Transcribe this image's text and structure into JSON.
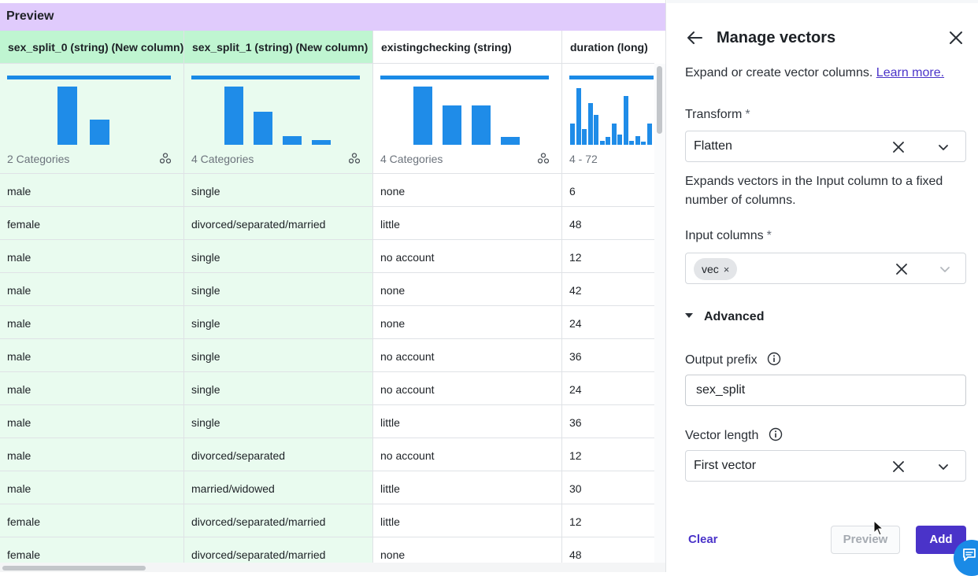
{
  "preview": {
    "title": "Preview",
    "columns": [
      {
        "header": "sex_split_0 (string) (New column)",
        "summary": "2 Categories",
        "bars": [
          0.92,
          0.4
        ]
      },
      {
        "header": "sex_split_1 (string) (New column)",
        "summary": "4 Categories",
        "bars": [
          0.92,
          0.52,
          0.14,
          0.07
        ]
      },
      {
        "header": "existingchecking (string)",
        "summary": "4 Categories",
        "bars": [
          0.92,
          0.62,
          0.62,
          0.13
        ]
      },
      {
        "header": "duration (long)",
        "summary": "4 - 72",
        "bars": [
          0.34,
          0.9,
          0.25,
          0.66,
          0.48,
          0.06,
          0.12,
          0.34,
          0.16,
          0.78,
          0.06,
          0.14,
          0.05,
          0.34
        ]
      }
    ],
    "rows": [
      [
        "male",
        "single",
        "none",
        "6"
      ],
      [
        "female",
        "divorced/separated/married",
        "little",
        "48"
      ],
      [
        "male",
        "single",
        "no account",
        "12"
      ],
      [
        "male",
        "single",
        "none",
        "42"
      ],
      [
        "male",
        "single",
        "none",
        "24"
      ],
      [
        "male",
        "single",
        "no account",
        "36"
      ],
      [
        "male",
        "single",
        "no account",
        "24"
      ],
      [
        "male",
        "single",
        "little",
        "36"
      ],
      [
        "male",
        "divorced/separated",
        "no account",
        "12"
      ],
      [
        "male",
        "married/widowed",
        "little",
        "30"
      ],
      [
        "female",
        "divorced/separated/married",
        "little",
        "12"
      ],
      [
        "female",
        "divorced/separated/married",
        "none",
        "48"
      ]
    ]
  },
  "panel": {
    "title": "Manage vectors",
    "description": "Expand or create vector columns.",
    "learn_more": "Learn more.",
    "transform": {
      "label": "Transform",
      "required_mark": "*",
      "value": "Flatten",
      "help": "Expands vectors in the Input column to a fixed number of columns."
    },
    "input_columns": {
      "label": "Input columns",
      "required_mark": "*",
      "chip": "vec",
      "chip_remove": "×"
    },
    "advanced": {
      "label": "Advanced"
    },
    "output_prefix": {
      "label": "Output prefix",
      "value": "sex_split"
    },
    "vector_length": {
      "label": "Vector length",
      "value": "First vector"
    },
    "buttons": {
      "clear": "Clear",
      "preview": "Preview",
      "add": "Add"
    }
  },
  "icons": {
    "back": "arrow-left-icon",
    "close": "close-icon",
    "clear": "x-icon",
    "dropdown": "chevron-down-icon",
    "info": "info-icon",
    "distribution": "distribution-icon",
    "chat": "chat-icon"
  },
  "colors": {
    "accent": "#4a33c9",
    "histogram": "#1f8ce8",
    "preview_header": "#e0cbfc",
    "new_column_header": "#bff5d1",
    "new_column_body": "#e9fbef"
  }
}
